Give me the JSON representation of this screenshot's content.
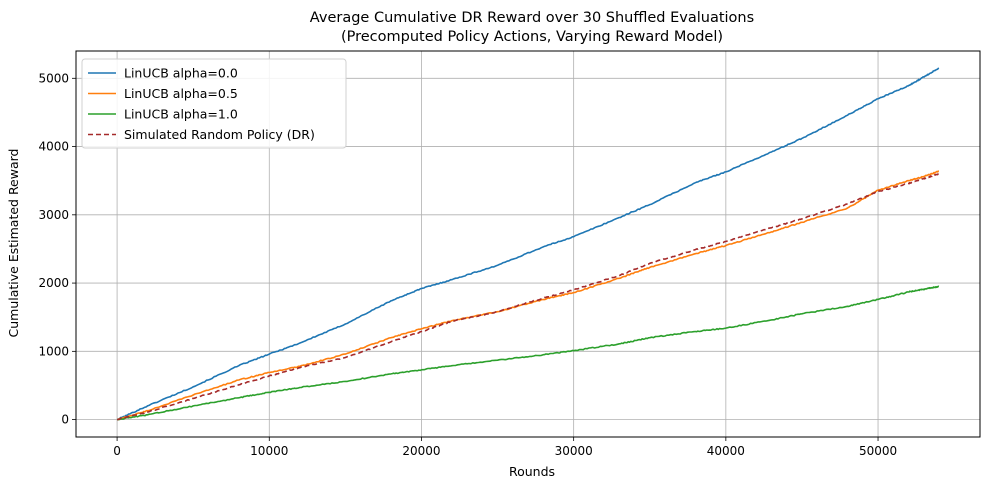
{
  "chart_data": {
    "type": "line",
    "title": "Average Cumulative DR Reward over 30 Shuffled Evaluations",
    "subtitle": "(Precomputed Policy Actions, Varying Reward Model)",
    "xlabel": "Rounds",
    "ylabel": "Cumulative Estimated Reward",
    "xlim": [
      -2700,
      56700
    ],
    "ylim": [
      -255,
      5400
    ],
    "xticks": [
      0,
      10000,
      20000,
      30000,
      40000,
      50000
    ],
    "yticks": [
      0,
      1000,
      2000,
      3000,
      4000,
      5000
    ],
    "grid": true,
    "legend_position": "top-left",
    "series": [
      {
        "name": "LinUCB alpha=0.0",
        "color": "#1f77b4",
        "style": "solid",
        "x": [
          0,
          2000,
          5000,
          8000,
          10000,
          12000,
          15000,
          18000,
          20000,
          22000,
          25000,
          28000,
          30000,
          33000,
          35000,
          38000,
          40000,
          43000,
          45000,
          48000,
          50000,
          52000,
          53000,
          54000
        ],
        "y": [
          0,
          200,
          480,
          790,
          960,
          1120,
          1400,
          1740,
          1920,
          2050,
          2260,
          2530,
          2680,
          2960,
          3150,
          3470,
          3630,
          3920,
          4120,
          4460,
          4700,
          4890,
          5020,
          5150
        ]
      },
      {
        "name": "LinUCB alpha=0.5",
        "color": "#ff7f0e",
        "style": "solid",
        "x": [
          0,
          2000,
          5000,
          8000,
          10000,
          12000,
          15000,
          18000,
          20000,
          22000,
          25000,
          28000,
          30000,
          33000,
          35000,
          38000,
          40000,
          43000,
          45000,
          48000,
          50000,
          52000,
          53000,
          54000
        ],
        "y": [
          0,
          130,
          360,
          580,
          690,
          780,
          960,
          1200,
          1330,
          1450,
          1580,
          1760,
          1860,
          2070,
          2230,
          2430,
          2550,
          2750,
          2890,
          3100,
          3360,
          3500,
          3560,
          3640
        ]
      },
      {
        "name": "LinUCB alpha=1.0",
        "color": "#2ca02c",
        "style": "solid",
        "x": [
          0,
          2000,
          5000,
          8000,
          10000,
          12000,
          15000,
          18000,
          20000,
          22000,
          25000,
          28000,
          30000,
          33000,
          35000,
          38000,
          40000,
          43000,
          45000,
          48000,
          50000,
          52000,
          53000,
          54000
        ],
        "y": [
          0,
          70,
          200,
          320,
          400,
          470,
          560,
          670,
          730,
          790,
          870,
          950,
          1010,
          1110,
          1200,
          1290,
          1340,
          1460,
          1550,
          1660,
          1760,
          1870,
          1910,
          1950
        ]
      },
      {
        "name": "Simulated Random Policy (DR)",
        "color": "#a52a2a",
        "style": "dashed",
        "x": [
          0,
          2000,
          5000,
          8000,
          10000,
          12000,
          15000,
          18000,
          20000,
          22000,
          25000,
          28000,
          30000,
          33000,
          35000,
          38000,
          40000,
          43000,
          45000,
          48000,
          50000,
          52000,
          53000,
          54000
        ],
        "y": [
          0,
          110,
          310,
          510,
          640,
          760,
          910,
          1140,
          1290,
          1440,
          1580,
          1780,
          1900,
          2110,
          2290,
          2490,
          2610,
          2810,
          2940,
          3160,
          3340,
          3460,
          3530,
          3600
        ]
      }
    ]
  }
}
